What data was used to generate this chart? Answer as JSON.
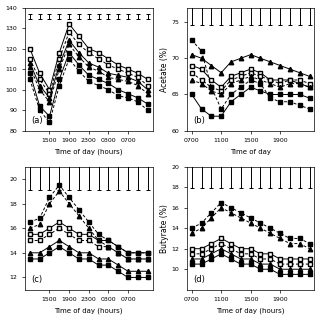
{
  "subplot_a": {
    "label": "(a)",
    "xlabel": "Time of day (hours)",
    "ylabel": "",
    "x_ticks": [
      "1500",
      "1900",
      "2300",
      "0300",
      "0700"
    ],
    "x_vals": [
      0,
      1,
      2,
      3,
      4,
      5,
      6,
      7,
      8,
      9,
      10,
      11,
      12
    ],
    "x_tick_pos": [
      2,
      4,
      6,
      8,
      10
    ],
    "series": {
      "open_square_solid": [
        120,
        108,
        100,
        118,
        132,
        126,
        120,
        118,
        115,
        112,
        110,
        108,
        105
      ],
      "open_square_dash": [
        115,
        105,
        98,
        115,
        128,
        122,
        118,
        115,
        112,
        110,
        108,
        106,
        102
      ],
      "filled_tri_solid": [
        113,
        102,
        96,
        112,
        124,
        118,
        113,
        111,
        108,
        107,
        106,
        104,
        100
      ],
      "filled_tri_dash": [
        111,
        100,
        94,
        110,
        122,
        116,
        111,
        109,
        106,
        105,
        104,
        102,
        98
      ],
      "filled_sq_solid": [
        108,
        92,
        87,
        105,
        118,
        112,
        107,
        105,
        103,
        100,
        98,
        96,
        93
      ],
      "filled_sq_dash": [
        105,
        90,
        84,
        102,
        115,
        109,
        104,
        102,
        100,
        97,
        96,
        94,
        90
      ]
    },
    "ylim": [
      80,
      140
    ],
    "yticks": [
      80,
      90,
      100,
      110,
      120,
      130,
      140
    ]
  },
  "subplot_b": {
    "label": "(b)",
    "xlabel": "Time of day",
    "ylabel": "Acetate (%)",
    "x_ticks": [
      "0700",
      "1100",
      "1500",
      "1900"
    ],
    "x_vals": [
      0,
      1,
      2,
      3,
      4,
      5,
      6,
      7,
      8,
      9,
      10,
      11,
      12
    ],
    "x_tick_pos": [
      0,
      3,
      6,
      9
    ],
    "series": {
      "filled_tri_solid": [
        70.5,
        70,
        69,
        68,
        69.5,
        70,
        70.5,
        70,
        69.5,
        69,
        68.5,
        68,
        67.5
      ],
      "open_square_solid": [
        69,
        68.5,
        67,
        66,
        67.5,
        68,
        68.5,
        68,
        67,
        67,
        67,
        66.5,
        66
      ],
      "open_square_dash": [
        68,
        67,
        66,
        65.5,
        67,
        67.5,
        68,
        67.5,
        67,
        66.5,
        67,
        67,
        66.5
      ],
      "filled_tri_dash": [
        67,
        66.5,
        65.5,
        65,
        66.5,
        67,
        67.5,
        67,
        66.5,
        66,
        66.5,
        66.5,
        66
      ],
      "filled_sq_solid": [
        65,
        63,
        62,
        62,
        64,
        65,
        66,
        65.5,
        65,
        65,
        65,
        65,
        64.5
      ],
      "filled_sq_dash": [
        72.5,
        71,
        66,
        63,
        65,
        66,
        67,
        66.5,
        64.5,
        64,
        64,
        63.5,
        63
      ]
    },
    "ylim": [
      60,
      77
    ],
    "yticks": [
      60,
      65,
      70,
      75
    ]
  },
  "subplot_c": {
    "label": "(c)",
    "xlabel": "Time of day (hours)",
    "ylabel": "",
    "x_ticks": [
      "1500",
      "1900",
      "2300",
      "0300",
      "0700"
    ],
    "x_vals": [
      0,
      1,
      2,
      3,
      4,
      5,
      6,
      7,
      8,
      9,
      10,
      11,
      12
    ],
    "x_tick_pos": [
      2,
      4,
      6,
      8,
      10
    ],
    "series": {
      "filled_sq_dash": [
        16.5,
        16.8,
        18.5,
        19.5,
        18.5,
        17.5,
        16.5,
        15.5,
        15,
        14.5,
        14,
        14,
        14
      ],
      "filled_tri_dash": [
        16,
        16.3,
        18,
        19,
        18,
        17,
        16,
        15,
        14.5,
        14,
        13.5,
        13.5,
        13.5
      ],
      "open_square_solid": [
        15.5,
        15.5,
        16,
        16.5,
        16,
        15.5,
        15.5,
        15,
        15,
        14.5,
        14,
        14,
        14
      ],
      "open_square_dash": [
        15,
        15,
        15.5,
        16,
        15.5,
        15,
        15,
        14.5,
        14.5,
        14,
        13.5,
        13.5,
        13.5
      ],
      "filled_tri_solid": [
        14,
        14,
        14.5,
        15,
        14.5,
        14,
        14,
        13.5,
        13.5,
        13,
        12.5,
        12.5,
        12.5
      ],
      "filled_sq_solid": [
        13.5,
        13.5,
        14,
        14.5,
        14,
        13.5,
        13.5,
        13,
        13,
        12.5,
        12,
        12,
        12
      ]
    },
    "ylim": [
      11,
      21
    ],
    "yticks": [
      12,
      14,
      16,
      18,
      20
    ]
  },
  "subplot_d": {
    "label": "(d)",
    "xlabel": "Time of day (hours)",
    "ylabel": "Butyrate (%)",
    "x_ticks": [
      "0700",
      "1100",
      "1500",
      "1900"
    ],
    "x_vals": [
      0,
      1,
      2,
      3,
      4,
      5,
      6,
      7,
      8,
      9,
      10,
      11,
      12
    ],
    "x_tick_pos": [
      0,
      3,
      6,
      9
    ],
    "series": {
      "filled_sq_dash": [
        14,
        14.5,
        15.5,
        16.5,
        16,
        15.5,
        15,
        14.5,
        14,
        13.5,
        13,
        13,
        12.5
      ],
      "filled_tri_dash": [
        13.5,
        14,
        15,
        16,
        15.5,
        15,
        14.5,
        14,
        13.5,
        13,
        12.5,
        12.5,
        12
      ],
      "open_square_solid": [
        12,
        12,
        12.5,
        13,
        12.5,
        12,
        12,
        11.5,
        11.5,
        11,
        11,
        11,
        11
      ],
      "open_square_dash": [
        11.5,
        11.5,
        12,
        12.5,
        12,
        11.5,
        11.5,
        11,
        11,
        10.5,
        10.5,
        10.5,
        10.5
      ],
      "filled_tri_solid": [
        11,
        11,
        11.5,
        12,
        11.5,
        11,
        11,
        10.5,
        10.5,
        10,
        10,
        10,
        10
      ],
      "filled_sq_solid": [
        10.5,
        10.5,
        11,
        11.5,
        11,
        10.5,
        10.5,
        10,
        10,
        9.5,
        9.5,
        9.5,
        9.5
      ]
    },
    "ylim": [
      8,
      20
    ],
    "yticks": [
      10,
      12,
      14,
      16,
      18,
      20
    ]
  },
  "error_bar_half_height": 1.2
}
